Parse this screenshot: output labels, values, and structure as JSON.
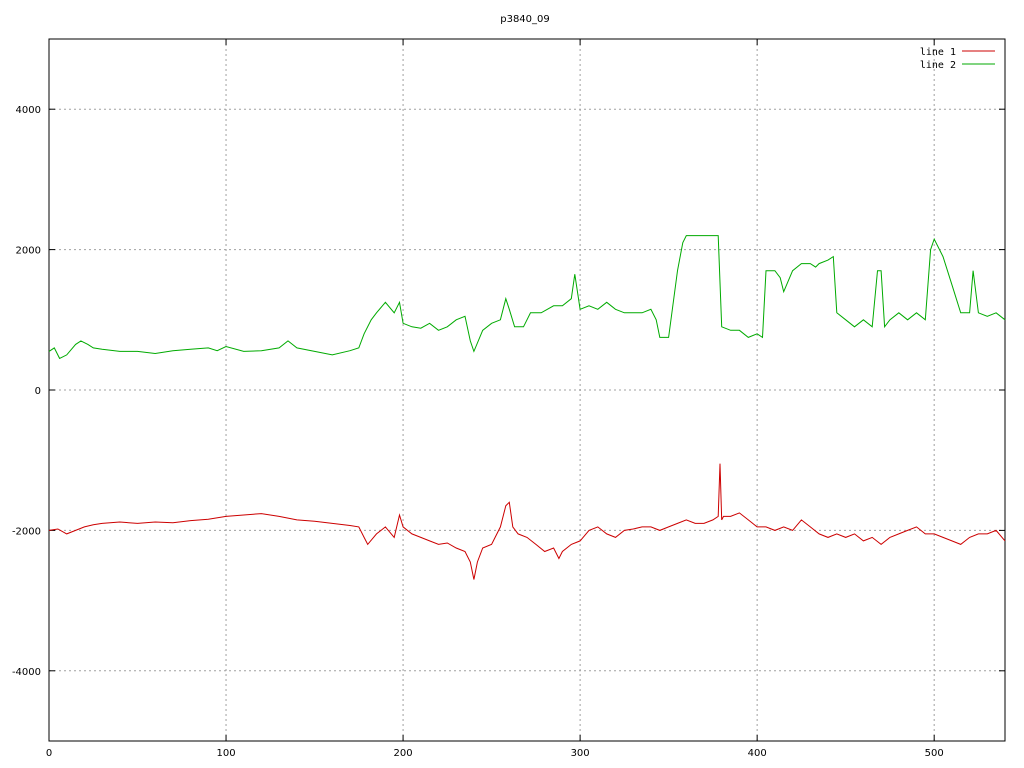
{
  "chart_data": {
    "type": "line",
    "title": "p3840_09",
    "xlabel": "",
    "ylabel": "",
    "xlim": [
      0,
      540
    ],
    "ylim": [
      -5000,
      5000
    ],
    "x_ticks": [
      0,
      100,
      200,
      300,
      400,
      500
    ],
    "y_ticks": [
      -4000,
      -2000,
      0,
      2000,
      4000
    ],
    "grid": true,
    "legend_position": "top-right",
    "series": [
      {
        "name": "line 1",
        "color": "#cc0000",
        "x": [
          0,
          5,
          10,
          15,
          20,
          25,
          30,
          40,
          50,
          60,
          70,
          80,
          90,
          100,
          110,
          120,
          130,
          140,
          150,
          160,
          170,
          175,
          178,
          180,
          185,
          190,
          195,
          198,
          200,
          205,
          210,
          215,
          220,
          225,
          230,
          235,
          238,
          240,
          242,
          245,
          250,
          255,
          258,
          260,
          262,
          265,
          270,
          275,
          280,
          285,
          288,
          290,
          295,
          300,
          305,
          310,
          315,
          320,
          325,
          330,
          335,
          340,
          345,
          350,
          355,
          360,
          365,
          370,
          375,
          378,
          379,
          380,
          381,
          385,
          390,
          395,
          400,
          405,
          410,
          415,
          420,
          425,
          430,
          435,
          440,
          445,
          450,
          455,
          460,
          465,
          470,
          475,
          480,
          485,
          490,
          495,
          500,
          505,
          510,
          515,
          520,
          525,
          530,
          535,
          540
        ],
        "y": [
          -2000,
          -1980,
          -2050,
          -2000,
          -1950,
          -1920,
          -1900,
          -1880,
          -1900,
          -1880,
          -1890,
          -1860,
          -1840,
          -1800,
          -1780,
          -1760,
          -1800,
          -1850,
          -1870,
          -1900,
          -1930,
          -1950,
          -2100,
          -2200,
          -2050,
          -1950,
          -2100,
          -1780,
          -1950,
          -2050,
          -2100,
          -2150,
          -2200,
          -2180,
          -2250,
          -2300,
          -2450,
          -2700,
          -2450,
          -2250,
          -2200,
          -1950,
          -1650,
          -1600,
          -1950,
          -2050,
          -2100,
          -2200,
          -2300,
          -2250,
          -2400,
          -2300,
          -2200,
          -2150,
          -2000,
          -1950,
          -2050,
          -2100,
          -2000,
          -1980,
          -1950,
          -1950,
          -2000,
          -1950,
          -1900,
          -1850,
          -1900,
          -1900,
          -1850,
          -1800,
          -1050,
          -1850,
          -1800,
          -1800,
          -1750,
          -1850,
          -1950,
          -1950,
          -2000,
          -1950,
          -2000,
          -1850,
          -1950,
          -2050,
          -2100,
          -2050,
          -2100,
          -2050,
          -2150,
          -2100,
          -2200,
          -2100,
          -2050,
          -2000,
          -1950,
          -2050,
          -2050,
          -2100,
          -2150,
          -2200,
          -2100,
          -2050,
          -2050,
          -2000,
          -2150
        ]
      },
      {
        "name": "line 2",
        "color": "#00aa00",
        "x": [
          0,
          3,
          6,
          10,
          15,
          18,
          22,
          25,
          30,
          40,
          50,
          60,
          70,
          80,
          90,
          95,
          100,
          110,
          120,
          130,
          135,
          140,
          150,
          160,
          170,
          175,
          178,
          182,
          185,
          190,
          195,
          198,
          200,
          205,
          210,
          215,
          220,
          225,
          230,
          235,
          238,
          240,
          245,
          250,
          255,
          258,
          260,
          263,
          268,
          272,
          278,
          285,
          290,
          295,
          297,
          300,
          305,
          310,
          315,
          320,
          325,
          330,
          335,
          340,
          343,
          345,
          350,
          355,
          358,
          360,
          365,
          370,
          375,
          378,
          380,
          385,
          390,
          395,
          400,
          403,
          405,
          410,
          413,
          415,
          420,
          425,
          430,
          433,
          435,
          440,
          443,
          445,
          450,
          455,
          460,
          465,
          468,
          470,
          472,
          475,
          480,
          485,
          490,
          495,
          498,
          500,
          503,
          505,
          510,
          515,
          520,
          522,
          525,
          530,
          535,
          540
        ],
        "y": [
          550,
          600,
          450,
          500,
          650,
          700,
          650,
          600,
          580,
          550,
          550,
          520,
          560,
          580,
          600,
          560,
          620,
          550,
          560,
          600,
          700,
          600,
          550,
          500,
          560,
          600,
          800,
          1000,
          1100,
          1250,
          1100,
          1250,
          950,
          900,
          880,
          950,
          850,
          900,
          1000,
          1050,
          700,
          550,
          850,
          950,
          1000,
          1300,
          1150,
          900,
          900,
          1100,
          1100,
          1200,
          1200,
          1300,
          1650,
          1150,
          1200,
          1150,
          1250,
          1150,
          1100,
          1100,
          1100,
          1150,
          1000,
          750,
          750,
          1700,
          2100,
          2200,
          2200,
          2200,
          2200,
          2200,
          900,
          850,
          850,
          750,
          800,
          750,
          1700,
          1700,
          1600,
          1400,
          1700,
          1800,
          1800,
          1750,
          1800,
          1850,
          1900,
          1100,
          1000,
          900,
          1000,
          900,
          1700,
          1700,
          900,
          1000,
          1100,
          1000,
          1100,
          1000,
          2000,
          2150,
          2000,
          1900,
          1500,
          1100,
          1100,
          1700,
          1100,
          1050,
          1100,
          1000
        ]
      }
    ]
  }
}
